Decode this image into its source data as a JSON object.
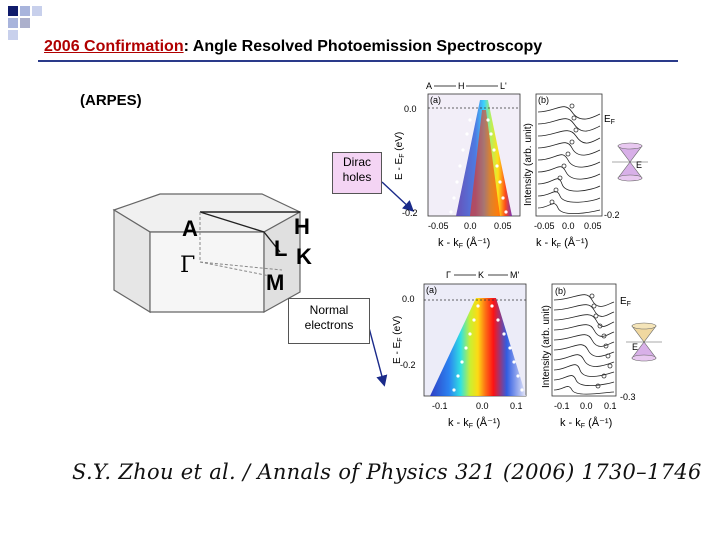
{
  "title": {
    "accent": "2006 Confirmation",
    "rest": ": Angle Resolved Photoemission Spectroscopy"
  },
  "subtitle": "(ARPES)",
  "callouts": {
    "dirac": [
      "Dirac",
      "holes"
    ],
    "normal": [
      "Normal",
      "electrons"
    ]
  },
  "brillouin_zone": {
    "labels": [
      "A",
      "H",
      "L",
      "K",
      "Γ",
      "M"
    ]
  },
  "panel_top": {
    "path_labels": [
      "A",
      "H",
      "L'"
    ],
    "panel_a": "(a)",
    "panel_b": "(b)",
    "y_ticks": [
      "0.0",
      "-0.2"
    ],
    "y_label": "E - E",
    "y_label_sub": "F",
    "y_label_unit": "(eV)",
    "x_ticks": [
      "-0.05",
      "0.0",
      "0.05"
    ],
    "x_ticks_b": [
      "-0.05",
      "0.0",
      "0.05"
    ],
    "x_label": "k - k",
    "x_label_sub": "F",
    "x_label_unit": "(Å⁻¹)",
    "intensity_label": "Intensity (arb. unit)",
    "ef": "E",
    "ef_sub": "F",
    "right_tick": "-0.2",
    "cone_label": "E"
  },
  "panel_bottom": {
    "path_labels": [
      "Γ",
      "K",
      "M'"
    ],
    "panel_a": "(a)",
    "panel_b": "(b)",
    "y_ticks": [
      "0.0",
      "-0.2"
    ],
    "y_label": "E - E",
    "y_label_sub": "F",
    "y_label_unit": "(eV)",
    "x_ticks": [
      "-0.1",
      "0.0",
      "0.1"
    ],
    "x_ticks_b": [
      "-0.1",
      "0.0",
      "0.1"
    ],
    "x_label": "k - k",
    "x_label_sub": "F",
    "x_label_unit": "(Å⁻¹)",
    "intensity_label": "Intensity (arb. unit)",
    "ef": "E",
    "ef_sub": "F",
    "right_tick": "-0.3",
    "cone_label": "E"
  },
  "citation": "S.Y. Zhou et al. / Annals of Physics 321 (2006) 1730–1746",
  "colors": {
    "accent": "#b00000",
    "rule": "#2a3a8a",
    "arrow": "#1a2a8a",
    "corner_dark": "#101c6c",
    "corner_light": "#a8b4dc"
  }
}
